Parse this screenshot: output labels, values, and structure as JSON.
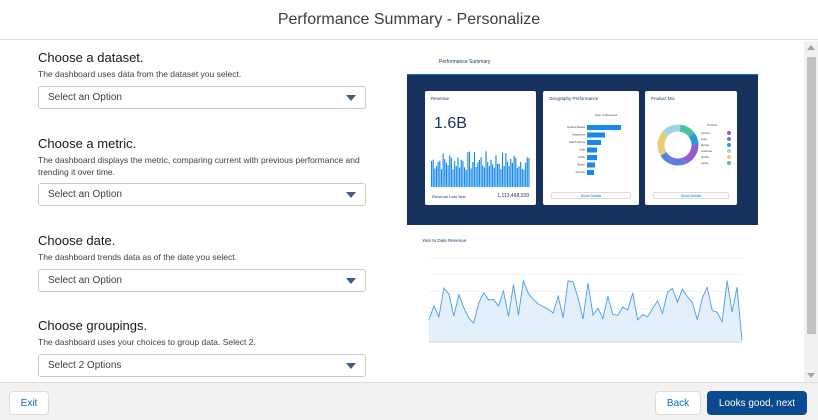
{
  "header": {
    "title": "Performance Summary - Personalize"
  },
  "form": {
    "dataset": {
      "heading": "Choose a dataset.",
      "description": "The dashboard uses data from the dataset you select.",
      "placeholder": "Select an Option"
    },
    "metric": {
      "heading": "Choose a metric.",
      "description": "The dashboard displays the metric, comparing current with previous performance and trending it over time.",
      "placeholder": "Select an Option"
    },
    "date": {
      "heading": "Choose date.",
      "description": "The dashboard trends data as of the date you select.",
      "placeholder": "Select an Option"
    },
    "groupings": {
      "heading": "Choose groupings.",
      "description": "The dashboard uses your choices to group data. Select 2.",
      "placeholder": "Select 2 Options"
    }
  },
  "preview": {
    "title": "Performance Summary",
    "revenue_card": {
      "title": "Revenue",
      "value": "1.6B",
      "footer_label": "Revenue Last Year",
      "footer_value": "1,113,468,039"
    },
    "geo_card": {
      "title": "Geography Performance",
      "axis_label": "Sum of Revenue",
      "countries": [
        "United States",
        "Argentina",
        "South Africa",
        "Italy",
        "Chile",
        "Brazil",
        "France"
      ],
      "button": "Show Details"
    },
    "product_card": {
      "title": "Product Mix",
      "legend_title": "Product",
      "legend": [
        "iphone",
        "ipad",
        "laptop",
        "watches",
        "books",
        "socks"
      ],
      "button": "Show Details"
    },
    "ytd_title": "Year to Date Revenue",
    "colors": {
      "dark_bg": "#16325c",
      "bar_blue": "#1589ee",
      "line_blue": "#4a9ce8",
      "area_fill": "#e3effa"
    }
  },
  "footer": {
    "exit_label": "Exit",
    "back_label": "Back",
    "next_label": "Looks good, next"
  }
}
